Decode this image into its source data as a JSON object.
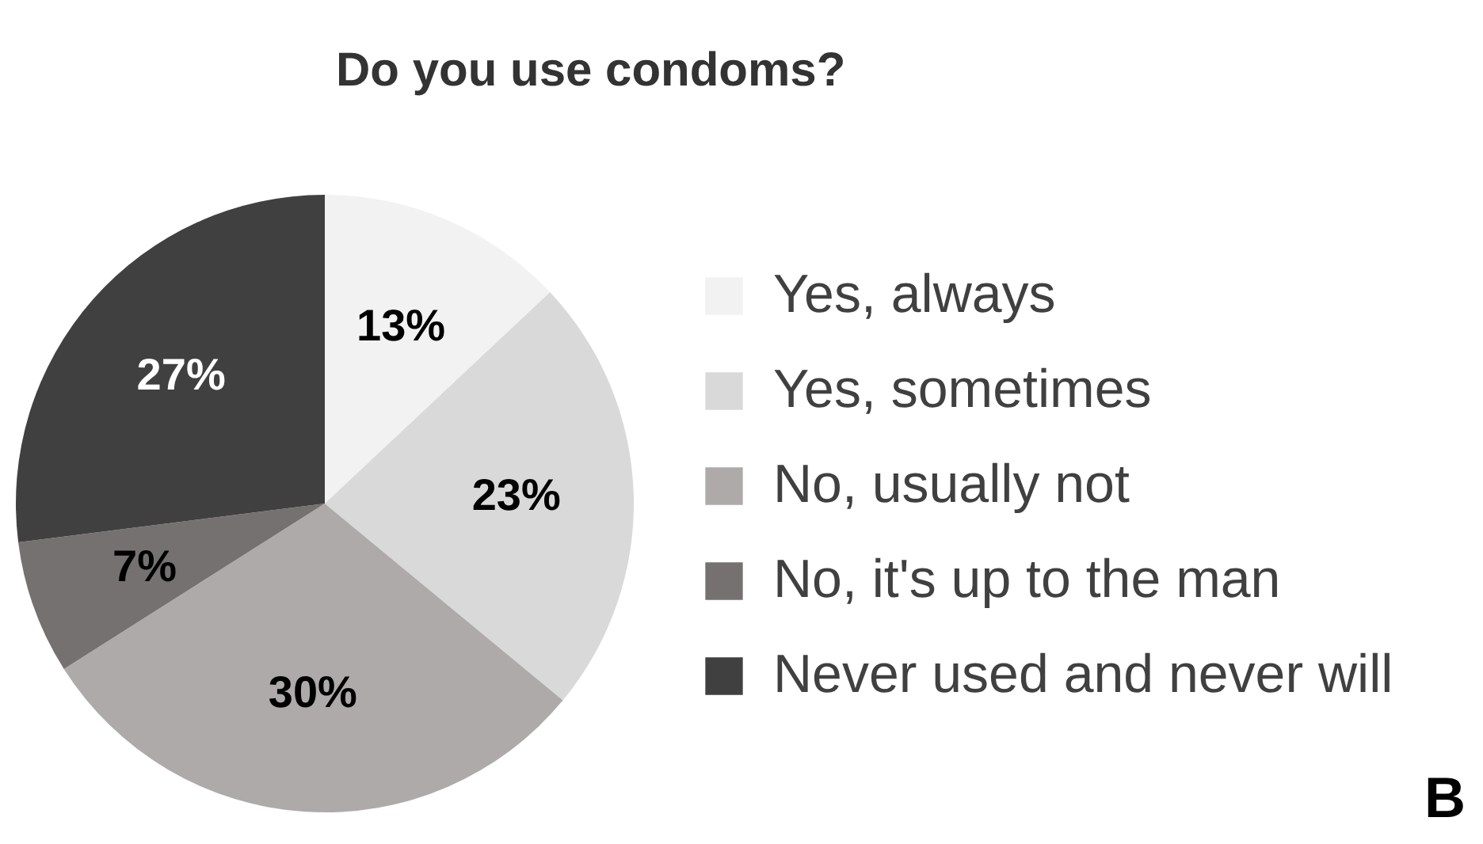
{
  "chart_data": {
    "type": "pie",
    "title": "Do you use condoms?",
    "categories": [
      "Yes, always",
      "Yes, sometimes",
      "No, usually not",
      "No, it's up to the man",
      "Never used and never will"
    ],
    "values": [
      13,
      23,
      30,
      7,
      27
    ],
    "colors": [
      "#f2f2f2",
      "#d9d9d9",
      "#aeaaaa",
      "#767171",
      "#404040"
    ],
    "value_labels": [
      "13%",
      "23%",
      "30%",
      "7%",
      "27%"
    ],
    "legend": "right",
    "annotations": [
      "B"
    ]
  }
}
